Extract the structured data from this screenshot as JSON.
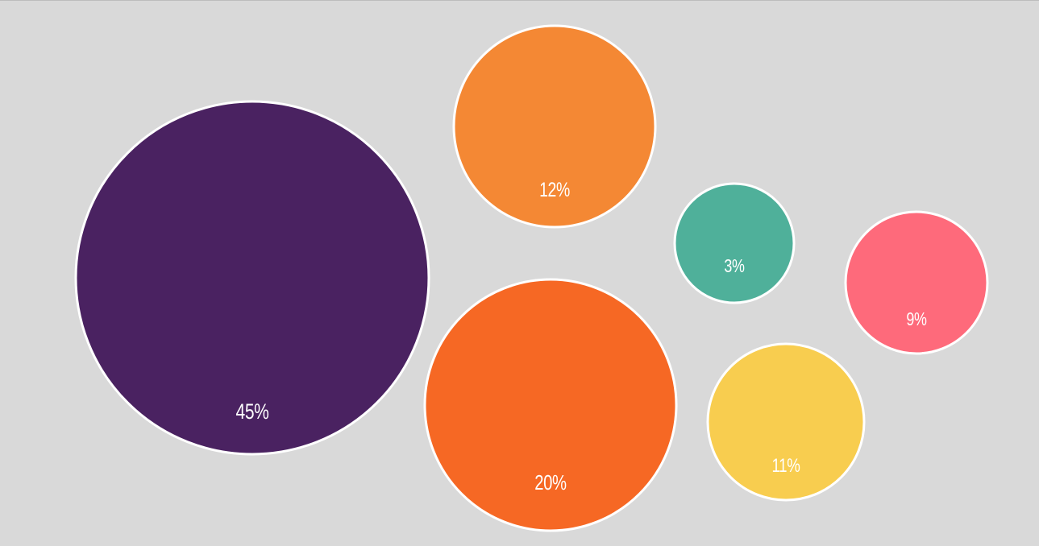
{
  "chart_data": {
    "type": "bubble",
    "unit": "%",
    "series": [
      {
        "label": "45%",
        "value": 45,
        "color": "#4a2261"
      },
      {
        "label": "20%",
        "value": 20,
        "color": "#f66824"
      },
      {
        "label": "12%",
        "value": 12,
        "color": "#f48834"
      },
      {
        "label": "11%",
        "value": 11,
        "color": "#f8cd4f"
      },
      {
        "label": "9%",
        "value": 9,
        "color": "#fe6a7b"
      },
      {
        "label": "3%",
        "value": 3,
        "color": "#4fb09a"
      }
    ],
    "stroke_color": "#ffffff",
    "background": "#d9d9d9"
  }
}
